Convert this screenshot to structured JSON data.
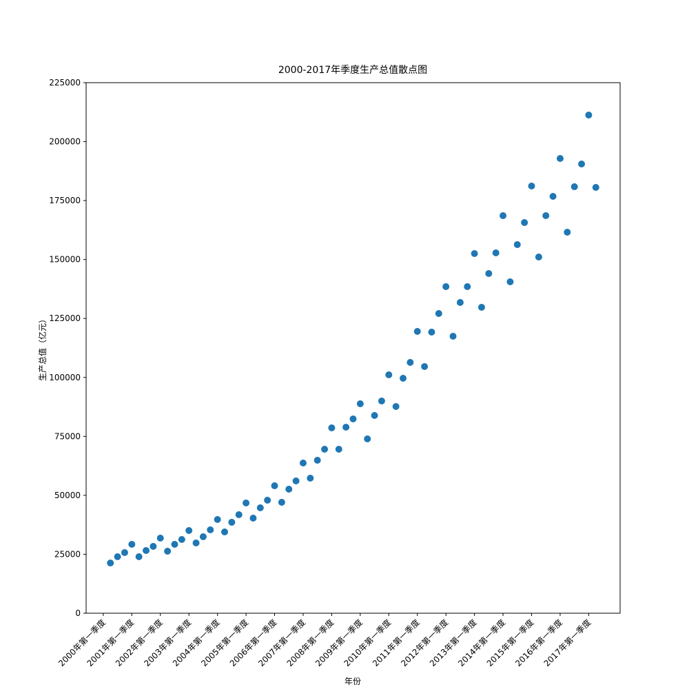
{
  "chart_data": {
    "type": "scatter",
    "title": "2000-2017年季度生产总值散点图",
    "x_label": "年份",
    "y_label": "生产总值（亿元）",
    "color": "#1f77b4",
    "x": [
      1,
      2,
      3,
      4,
      5,
      6,
      7,
      8,
      9,
      10,
      11,
      12,
      13,
      14,
      15,
      16,
      17,
      18,
      19,
      20,
      21,
      22,
      23,
      24,
      25,
      26,
      27,
      28,
      29,
      30,
      31,
      32,
      33,
      34,
      35,
      36,
      37,
      38,
      39,
      40,
      41,
      42,
      43,
      44,
      45,
      46,
      47,
      48,
      49,
      50,
      51,
      52,
      53,
      54,
      55,
      56,
      57,
      58,
      59,
      60,
      61,
      62,
      63,
      64,
      65,
      66,
      67,
      68,
      69
    ],
    "values": [
      21300,
      23960,
      25710,
      29220,
      23960,
      26590,
      28340,
      31850,
      26300,
      29220,
      31270,
      35060,
      29800,
      32430,
      35360,
      39740,
      34480,
      38570,
      41790,
      46750,
      40320,
      44710,
      47920,
      54060,
      47050,
      52600,
      56100,
      63700,
      57270,
      64870,
      69550,
      78600,
      69550,
      78900,
      82400,
      88830,
      73930,
      83860,
      90000,
      101100,
      87660,
      99640,
      106360,
      119510,
      104610,
      119220,
      127110,
      138510,
      117470,
      131790,
      138510,
      152530,
      129740,
      144060,
      152820,
      168600,
      140550,
      156330,
      165680,
      181170,
      151070,
      168600,
      176790,
      192860,
      161590,
      180880,
      190520,
      211270,
      180580
    ],
    "xlim": [
      -2.4,
      72.4
    ],
    "xticks": [
      {
        "value": 0,
        "label": "2000年第一季度"
      },
      {
        "value": 4,
        "label": "2001年第一季度"
      },
      {
        "value": 8,
        "label": "2002年第一季度"
      },
      {
        "value": 12,
        "label": "2003年第一季度"
      },
      {
        "value": 16,
        "label": "2004年第一季度"
      },
      {
        "value": 20,
        "label": "2005年第一季度"
      },
      {
        "value": 24,
        "label": "2006年第一季度"
      },
      {
        "value": 28,
        "label": "2007年第一季度"
      },
      {
        "value": 32,
        "label": "2008年第一季度"
      },
      {
        "value": 36,
        "label": "2009年第一季度"
      },
      {
        "value": 40,
        "label": "2010年第一季度"
      },
      {
        "value": 44,
        "label": "2011年第一季度"
      },
      {
        "value": 48,
        "label": "2012年第一季度"
      },
      {
        "value": 52,
        "label": "2013年第一季度"
      },
      {
        "value": 56,
        "label": "2014年第一季度"
      },
      {
        "value": 60,
        "label": "2015年第一季度"
      },
      {
        "value": 64,
        "label": "2016年第一季度"
      },
      {
        "value": 68,
        "label": "2017年第一季度"
      }
    ],
    "ylim": [
      0,
      225000
    ],
    "yticks": [
      0,
      25000,
      50000,
      75000,
      100000,
      125000,
      150000,
      175000,
      200000,
      225000
    ]
  }
}
